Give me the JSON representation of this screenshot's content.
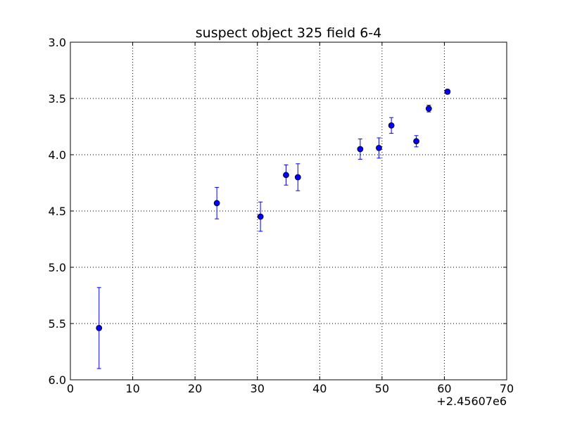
{
  "chart_data": {
    "type": "scatter",
    "title": "suspect object 325 field 6-4",
    "xlabel": "",
    "ylabel": "",
    "x_offset_label": "+2.45607e6",
    "xlim": [
      0,
      70
    ],
    "ylim": [
      6.0,
      3.0
    ],
    "y_inverted": true,
    "grid": true,
    "x_ticks": [
      "0",
      "10",
      "20",
      "30",
      "40",
      "50",
      "60",
      "70"
    ],
    "y_ticks": [
      "3.0",
      "3.5",
      "4.0",
      "4.5",
      "5.0",
      "5.5",
      "6.0"
    ],
    "marker_color": "#0000ff",
    "points": [
      {
        "x": 4.6,
        "y": 5.54,
        "err": 0.36
      },
      {
        "x": 23.5,
        "y": 4.43,
        "err": 0.14
      },
      {
        "x": 30.5,
        "y": 4.55,
        "err": 0.13
      },
      {
        "x": 34.6,
        "y": 4.18,
        "err": 0.09
      },
      {
        "x": 36.5,
        "y": 4.2,
        "err": 0.12
      },
      {
        "x": 46.5,
        "y": 3.95,
        "err": 0.09
      },
      {
        "x": 49.5,
        "y": 3.94,
        "err": 0.09
      },
      {
        "x": 51.5,
        "y": 3.74,
        "err": 0.07
      },
      {
        "x": 55.5,
        "y": 3.88,
        "err": 0.05
      },
      {
        "x": 57.5,
        "y": 3.59,
        "err": 0.03
      },
      {
        "x": 60.5,
        "y": 3.44,
        "err": 0.02
      }
    ]
  }
}
